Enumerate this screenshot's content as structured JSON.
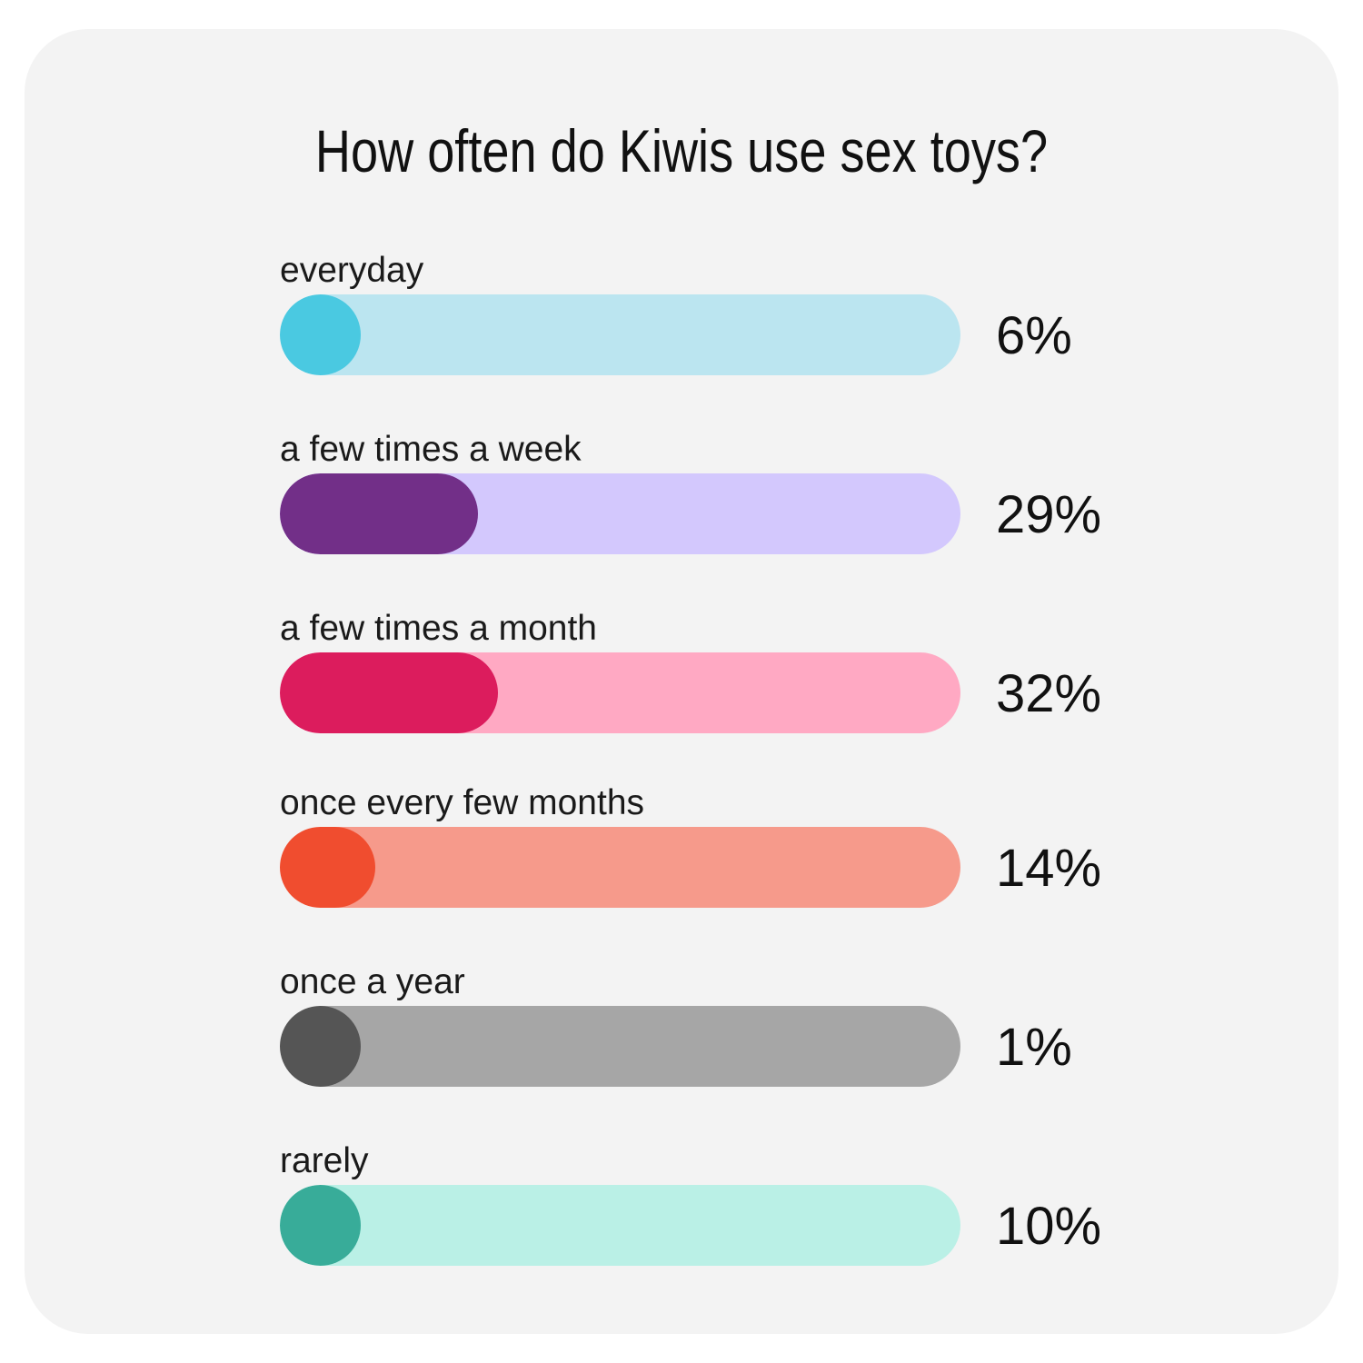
{
  "chart_data": {
    "type": "bar",
    "title": "How often do Kiwis use sex toys?",
    "categories": [
      "everyday",
      "a few times a week",
      "a few times a month",
      "once every few months",
      "once a year",
      "rarely"
    ],
    "values": [
      6,
      29,
      32,
      14,
      1,
      10
    ],
    "value_labels": [
      "6%",
      "29%",
      "32%",
      "14%",
      "1%",
      "10%"
    ],
    "unit": "%",
    "xlim": [
      0,
      100
    ],
    "orientation": "horizontal",
    "grid": false,
    "legend": "none",
    "colors": [
      {
        "fill": "#4ac9e1",
        "track": "#bbe5f0"
      },
      {
        "fill": "#722f88",
        "track": "#d3c8fd"
      },
      {
        "fill": "#dc1c5d",
        "track": "#ffa9c3"
      },
      {
        "fill": "#f04d2f",
        "track": "#f69a8b"
      },
      {
        "fill": "#555555",
        "track": "#a6a6a6"
      },
      {
        "fill": "#38ac99",
        "track": "#baf0e6"
      }
    ]
  }
}
